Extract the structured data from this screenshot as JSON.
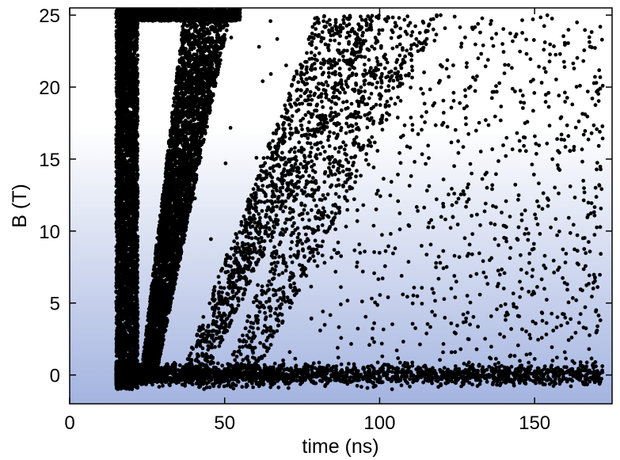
{
  "chart_data": {
    "type": "scatter",
    "title": "",
    "xlabel": "time (ns)",
    "ylabel": "B (T)",
    "xlim": [
      0,
      175
    ],
    "ylim": [
      -2,
      25.5
    ],
    "xticks": [
      0,
      50,
      100,
      150
    ],
    "yticks": [
      0,
      5,
      10,
      15,
      20,
      25
    ],
    "grid": false,
    "legend": "none",
    "marker_color": "#000000",
    "background_gradient": [
      "#ffffff",
      "#ffffff",
      "#a4b4e0"
    ],
    "density_regions": [
      {
        "description": "dense vertical band at instrument start",
        "x_range": [
          15,
          22
        ],
        "y_range": [
          -1,
          25.3
        ],
        "points": 3500
      },
      {
        "description": "dense slanted band",
        "x_start": [
          23,
          28
        ],
        "x_end": [
          37,
          52
        ],
        "y_range": [
          0,
          25.3
        ],
        "points": 4000
      },
      {
        "description": "saturated cluster along top",
        "x_range": [
          15,
          55
        ],
        "y_range": [
          24.6,
          25.4
        ],
        "points": 1500
      },
      {
        "description": "baseline near zero field",
        "x_range": [
          15,
          172
        ],
        "y_range": [
          -1.2,
          0.8
        ],
        "points": 2200
      },
      {
        "description": "sparse slanted streak 1",
        "x_start": [
          36,
          44
        ],
        "x_end": [
          80,
          100
        ],
        "y_range": [
          0,
          25
        ],
        "points": 1100
      },
      {
        "description": "sparse slanted streak 2",
        "x_start": [
          50,
          60
        ],
        "x_end": [
          95,
          120
        ],
        "y_range": [
          0,
          25
        ],
        "points": 800
      },
      {
        "description": "diffuse scatter fan",
        "x_range": [
          40,
          172
        ],
        "y_range": [
          0,
          25
        ],
        "points": 900
      }
    ]
  }
}
